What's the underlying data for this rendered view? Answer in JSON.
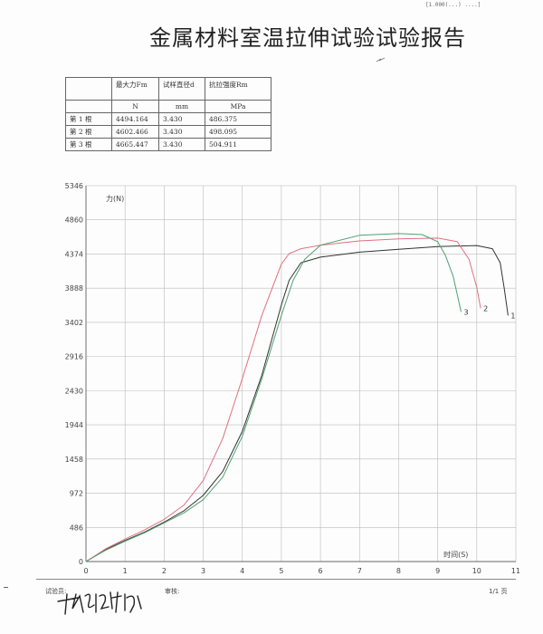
{
  "page": {
    "title": "金属材料室温拉伸试验试验报告",
    "top_mark": "[1.000(...) ....]"
  },
  "results_table": {
    "headers": [
      "",
      "最大力Fm",
      "试样直径d",
      "抗拉强度Rm"
    ],
    "units": [
      "",
      "N",
      "mm",
      "MPa"
    ],
    "rows": [
      {
        "label": "第 1 根",
        "fm": "4494.164",
        "d": "3.430",
        "rm": "486.375"
      },
      {
        "label": "第 2 根",
        "fm": "4602.466",
        "d": "3.430",
        "rm": "498.095"
      },
      {
        "label": "第 3 根",
        "fm": "4665.447",
        "d": "3.430",
        "rm": "504.911"
      }
    ]
  },
  "chart_data": {
    "type": "line",
    "ylabel": "力(N)",
    "xlabel": "时间(S)",
    "xlim": [
      0,
      11
    ],
    "ylim": [
      0,
      5346
    ],
    "x_ticks": [
      0,
      1,
      2,
      3,
      4,
      5,
      6,
      7,
      8,
      9,
      10,
      11
    ],
    "y_ticks": [
      0,
      486,
      972,
      1458,
      1944,
      2430,
      2916,
      3402,
      3888,
      4374,
      4860,
      5346
    ],
    "grid": true,
    "series": [
      {
        "name": "1",
        "color": "#333333",
        "x": [
          0,
          0.5,
          1.0,
          1.5,
          2.0,
          2.5,
          3.0,
          3.5,
          4.0,
          4.5,
          5.0,
          5.2,
          5.5,
          6.0,
          7.0,
          8.0,
          9.0,
          10.0,
          10.4,
          10.6,
          10.7,
          10.8
        ],
        "y": [
          0,
          170,
          300,
          420,
          560,
          720,
          940,
          1280,
          1850,
          2650,
          3650,
          4000,
          4250,
          4330,
          4400,
          4440,
          4480,
          4494,
          4450,
          4250,
          3900,
          3500
        ]
      },
      {
        "name": "2",
        "color": "#e07080",
        "x": [
          0,
          0.5,
          1.0,
          1.5,
          2.0,
          2.5,
          3.0,
          3.5,
          4.0,
          4.5,
          5.0,
          5.2,
          5.5,
          6.0,
          7.0,
          8.0,
          9.0,
          9.5,
          9.8,
          10.0,
          10.1
        ],
        "y": [
          0,
          180,
          320,
          450,
          600,
          800,
          1150,
          1750,
          2600,
          3500,
          4230,
          4380,
          4450,
          4500,
          4560,
          4590,
          4600,
          4550,
          4300,
          3900,
          3600
        ]
      },
      {
        "name": "3",
        "color": "#50a070",
        "x": [
          0,
          0.5,
          1.0,
          1.5,
          2.0,
          2.5,
          3.0,
          3.5,
          4.0,
          4.5,
          5.0,
          5.3,
          5.6,
          6.0,
          7.0,
          8.0,
          8.6,
          9.0,
          9.2,
          9.4,
          9.5,
          9.6
        ],
        "y": [
          0,
          160,
          290,
          410,
          550,
          690,
          880,
          1200,
          1780,
          2600,
          3500,
          4000,
          4300,
          4500,
          4640,
          4665,
          4650,
          4550,
          4350,
          4050,
          3800,
          3550
        ]
      }
    ]
  },
  "footer": {
    "tester_label": "试验员:",
    "reviewer_label": "审核:",
    "page_label": "1/1 页"
  }
}
